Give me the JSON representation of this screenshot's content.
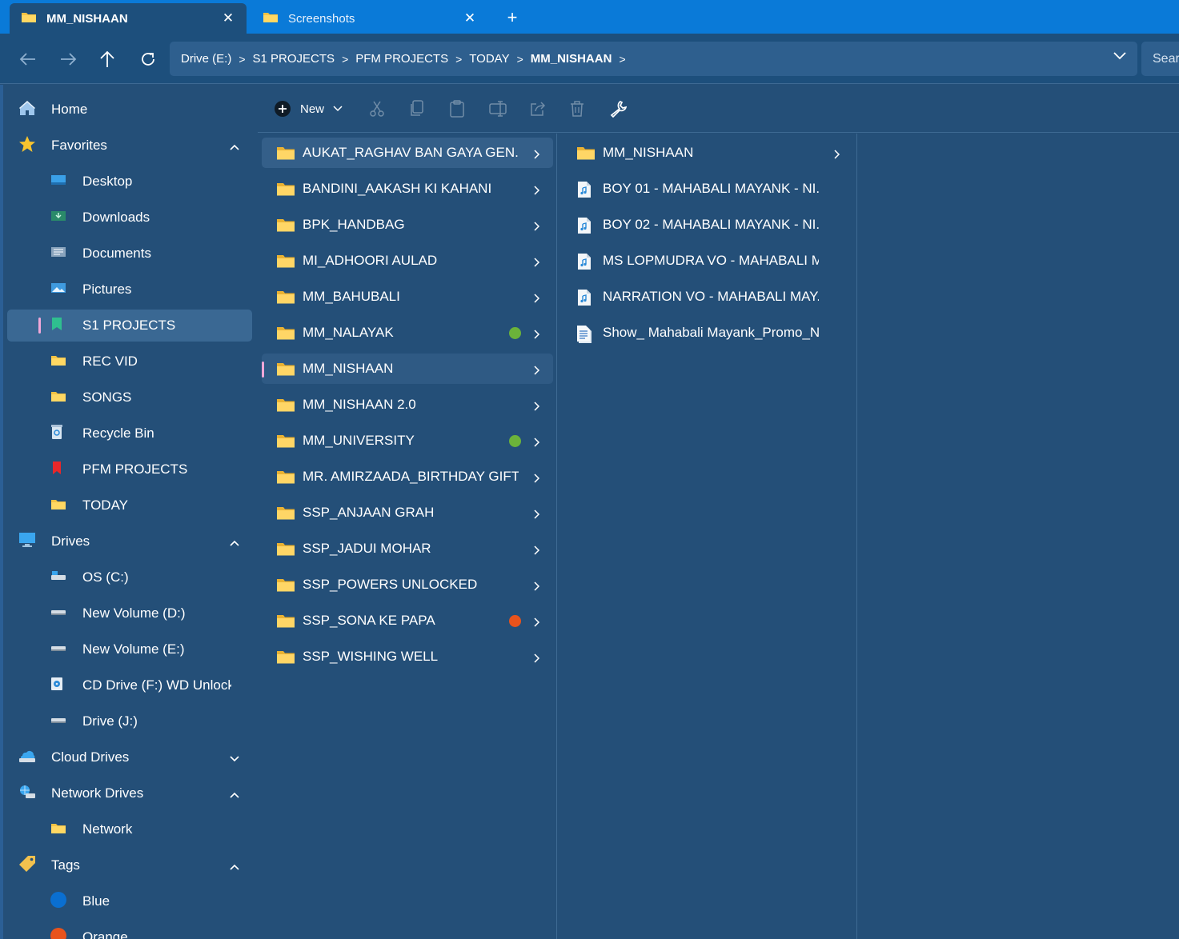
{
  "tabs": [
    {
      "label": "MM_NISHAAN",
      "icon": "folder-icon",
      "active": true
    },
    {
      "label": "Screenshots",
      "icon": "folder-icon",
      "active": false
    }
  ],
  "breadcrumb": [
    "Drive (E:)",
    "S1 PROJECTS",
    "PFM PROJECTS",
    "TODAY",
    "MM_NISHAAN"
  ],
  "search": {
    "placeholder": "Search"
  },
  "sidebar": {
    "home": "Home",
    "favorites": {
      "label": "Favorites",
      "items": [
        "Desktop",
        "Downloads",
        "Documents",
        "Pictures",
        "S1 PROJECTS",
        "REC VID",
        "SONGS",
        "Recycle Bin",
        "PFM PROJECTS",
        "TODAY"
      ]
    },
    "drives": {
      "label": "Drives",
      "items": [
        "OS (C:)",
        "New Volume (D:)",
        "New Volume (E:)",
        "CD Drive (F:) WD Unlocker",
        "Drive (J:)"
      ]
    },
    "cloud": {
      "label": "Cloud Drives"
    },
    "network": {
      "label": "Network Drives",
      "items": [
        "Network"
      ]
    },
    "tags": {
      "label": "Tags",
      "items": [
        {
          "label": "Blue",
          "color": "#0a6fd1"
        },
        {
          "label": "Orange",
          "color": "#e8531c"
        }
      ]
    }
  },
  "toolbar": {
    "new_label": "New"
  },
  "column1": [
    {
      "name": "AUKAT_RAGHAV BAN GAYA GEN...",
      "tag": null
    },
    {
      "name": "BANDINI_AAKASH KI KAHANI",
      "tag": null
    },
    {
      "name": "BPK_HANDBAG",
      "tag": null
    },
    {
      "name": "MI_ADHOORI AULAD",
      "tag": null
    },
    {
      "name": "MM_BAHUBALI",
      "tag": null
    },
    {
      "name": "MM_NALAYAK",
      "tag": "#6bb33a"
    },
    {
      "name": "MM_NISHAAN",
      "tag": null
    },
    {
      "name": "MM_NISHAAN 2.0",
      "tag": null
    },
    {
      "name": "MM_UNIVERSITY",
      "tag": "#6bb33a"
    },
    {
      "name": "MR. AMIRZAADA_BIRTHDAY GIFT",
      "tag": null
    },
    {
      "name": "SSP_ANJAAN GRAH",
      "tag": null
    },
    {
      "name": "SSP_JADUI MOHAR",
      "tag": null
    },
    {
      "name": "SSP_POWERS UNLOCKED",
      "tag": null
    },
    {
      "name": "SSP_SONA KE PAPA",
      "tag": "#e8531c"
    },
    {
      "name": "SSP_WISHING WELL",
      "tag": null
    }
  ],
  "column2": [
    {
      "name": "MM_NISHAAN",
      "kind": "folder"
    },
    {
      "name": "BOY 01 - MAHABALI MAYANK - NI...",
      "kind": "audio"
    },
    {
      "name": "BOY 02 - MAHABALI MAYANK - NI...",
      "kind": "audio"
    },
    {
      "name": "MS LOPMUDRA VO - MAHABALI M...",
      "kind": "audio"
    },
    {
      "name": "NARRATION VO - MAHABALI MAY...",
      "kind": "audio"
    },
    {
      "name": "Show_ Mahabali Mayank_Promo_N...",
      "kind": "doc"
    }
  ]
}
